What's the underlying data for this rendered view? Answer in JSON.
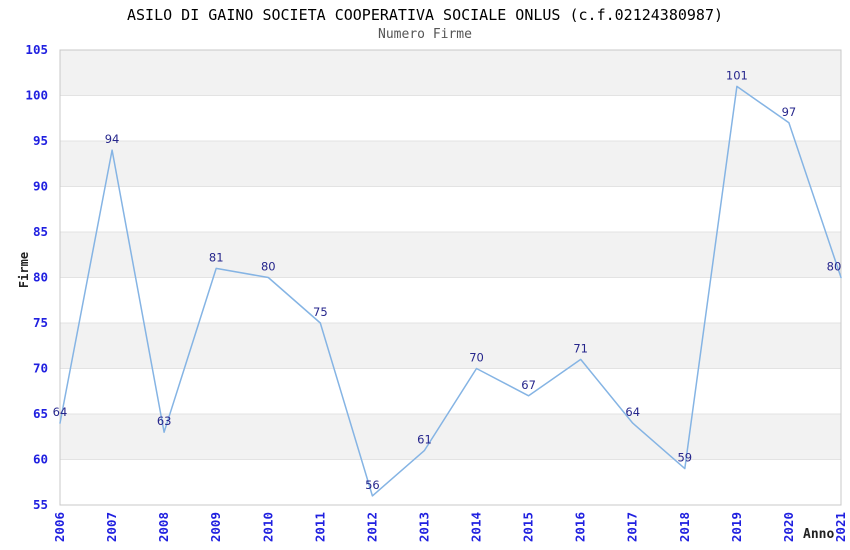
{
  "header": {
    "title": "ASILO DI GAINO SOCIETA COOPERATIVA SOCIALE ONLUS (c.f.02124380987)",
    "subtitle": "Numero Firme"
  },
  "chart_data": {
    "type": "line",
    "title": "ASILO DI GAINO SOCIETA COOPERATIVA SOCIALE ONLUS (c.f.02124380987)",
    "subtitle": "Numero Firme",
    "xlabel": "Anno",
    "ylabel": "Firme",
    "categories": [
      "2006",
      "2007",
      "2008",
      "2009",
      "2010",
      "2011",
      "2012",
      "2013",
      "2014",
      "2015",
      "2016",
      "2017",
      "2018",
      "2019",
      "2020",
      "2021"
    ],
    "series": [
      {
        "name": "Numero Firme",
        "values": [
          64,
          94,
          63,
          81,
          80,
          75,
          56,
          61,
          70,
          67,
          71,
          64,
          59,
          101,
          97,
          80
        ]
      }
    ],
    "ylim": [
      55,
      105
    ],
    "ytick_step": 5,
    "grid": true,
    "alternating_bands": true,
    "legend_position": "none",
    "point_labels_visible": true,
    "colors": {
      "line": "#85b4e4",
      "point_label": "#26268c",
      "tick_label": "#2020e0",
      "band": "#f2f2f2",
      "grid_line": "#e3e3e3",
      "frame": "#c8c8c8",
      "title": "#000000",
      "subtitle": "#555555",
      "axis_label": "#222222",
      "background": "#ffffff"
    }
  }
}
